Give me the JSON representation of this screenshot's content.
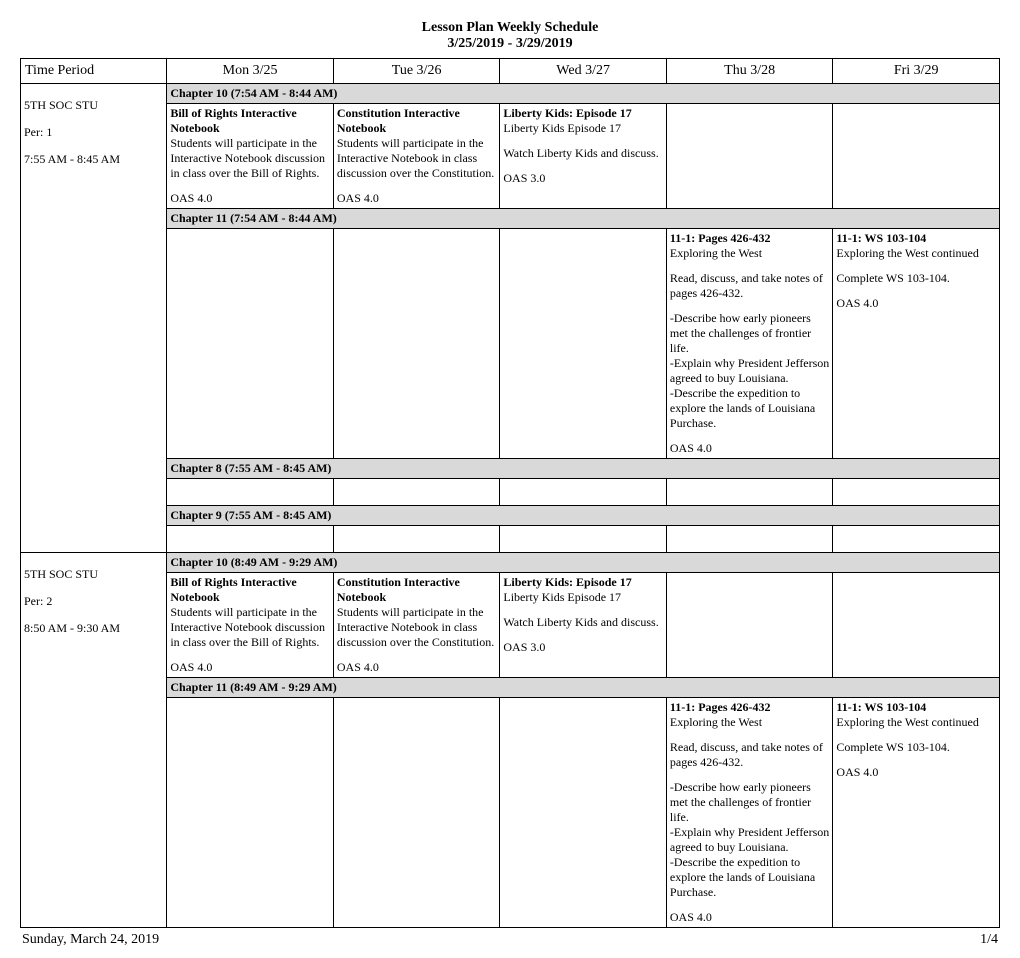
{
  "title": "Lesson Plan Weekly Schedule",
  "date_range": "3/25/2019 - 3/29/2019",
  "columns": {
    "time": "Time Period",
    "mon": "Mon 3/25",
    "tue": "Tue 3/26",
    "wed": "Wed 3/27",
    "thu": "Thu 3/28",
    "fri": "Fri 3/29"
  },
  "periods": [
    {
      "label_line1": "5TH SOC STU",
      "label_line2": "Per: 1",
      "label_line3": "7:55 AM - 8:45 AM",
      "sections": [
        {
          "head": "Chapter 10 (7:54 AM - 8:44 AM)",
          "cells": {
            "mon": {
              "title": "Bill of Rights Interactive Notebook",
              "body": "Students will participate in the Interactive Notebook discussion in class over the Bill of Rights.",
              "std": "OAS 4.0"
            },
            "tue": {
              "title": "Constitution Interactive Notebook",
              "body": "Students will participate in the Interactive Notebook in class discussion over the Constitution.",
              "std": "OAS 4.0"
            },
            "wed": {
              "title": "Liberty Kids: Episode 17",
              "body": "Liberty Kids Episode 17",
              "body2": "Watch Liberty Kids and discuss.",
              "std": "OAS 3.0"
            },
            "thu": null,
            "fri": null
          }
        },
        {
          "head": "Chapter 11 (7:54 AM - 8:44 AM)",
          "cells": {
            "mon": null,
            "tue": null,
            "wed": null,
            "thu": {
              "title": "11-1: Pages 426-432",
              "body": "Exploring the West",
              "body2": "Read, discuss, and take notes of pages 426-432.",
              "body3": "-Describe how early pioneers met the challenges of frontier life.\n-Explain why President Jefferson agreed to buy Louisiana.\n-Describe the expedition to explore the lands of Louisiana Purchase.",
              "std": "OAS 4.0"
            },
            "fri": {
              "title": "11-1: WS 103-104",
              "body": "Exploring the West continued",
              "body2": "Complete WS 103-104.",
              "std": "OAS 4.0"
            }
          }
        },
        {
          "head": "Chapter 8 (7:55 AM - 8:45 AM)",
          "cells": null
        },
        {
          "head": "Chapter 9 (7:55 AM - 8:45 AM)",
          "cells": null
        }
      ]
    },
    {
      "label_line1": "5TH SOC STU",
      "label_line2": "Per: 2",
      "label_line3": "8:50 AM - 9:30 AM",
      "sections": [
        {
          "head": "Chapter 10 (8:49 AM - 9:29 AM)",
          "cells": {
            "mon": {
              "title": "Bill of Rights Interactive Notebook",
              "body": "Students will participate in the Interactive Notebook discussion in class over the Bill of Rights.",
              "std": "OAS 4.0"
            },
            "tue": {
              "title": "Constitution Interactive Notebook",
              "body": "Students will participate in the Interactive Notebook in class discussion over the Constitution.",
              "std": "OAS 4.0"
            },
            "wed": {
              "title": "Liberty Kids: Episode 17",
              "body": "Liberty Kids Episode 17",
              "body2": "Watch Liberty Kids and discuss.",
              "std": "OAS 3.0"
            },
            "thu": null,
            "fri": null
          }
        },
        {
          "head": "Chapter 11 (8:49 AM - 9:29 AM)",
          "cells": {
            "mon": null,
            "tue": null,
            "wed": null,
            "thu": {
              "title": "11-1: Pages 426-432",
              "body": "Exploring the West",
              "body2": "Read, discuss, and take notes of pages 426-432.",
              "body3": "-Describe how early pioneers met the challenges of frontier life.\n-Explain why President Jefferson agreed to buy Louisiana.\n-Describe the expedition to explore the lands of Louisiana Purchase.",
              "std": "OAS 4.0"
            },
            "fri": {
              "title": "11-1: WS 103-104",
              "body": "Exploring the West continued",
              "body2": "Complete WS 103-104.",
              "std": "OAS 4.0"
            }
          }
        }
      ]
    }
  ],
  "footer_left": "Sunday, March 24, 2019",
  "footer_right": "1/4",
  "colors": {
    "section_bg": "#d9d9d9",
    "border": "#000000",
    "background": "#ffffff",
    "text": "#000000"
  },
  "fonts": {
    "family": "Times New Roman",
    "body_size_pt": 9,
    "title_size_pt": 11
  }
}
